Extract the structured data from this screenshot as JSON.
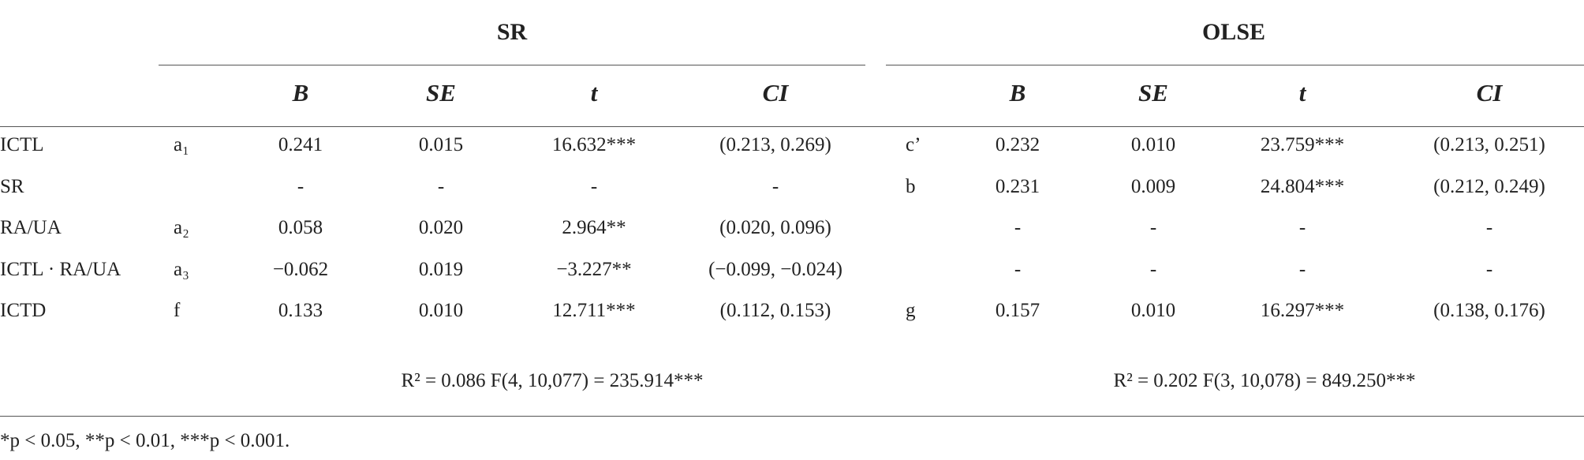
{
  "table": {
    "groups": [
      "SR",
      "OLSE"
    ],
    "columns": [
      "B",
      "SE",
      "t",
      "CI"
    ],
    "rows": [
      [
        "ICTL",
        "a₁",
        "0.241",
        "0.015",
        "16.632***",
        "(0.213, 0.269)",
        "c’",
        "0.232",
        "0.010",
        "23.759***",
        "(0.213, 0.251)"
      ],
      [
        "SR",
        null,
        "-",
        "-",
        "-",
        "-",
        "b",
        "0.231",
        "0.009",
        "24.804***",
        "(0.212, 0.249)"
      ],
      [
        "RA/UA",
        "a₂",
        "0.058",
        "0.020",
        "2.964**",
        "(0.020, 0.096)",
        null,
        "-",
        "-",
        "-",
        "-"
      ],
      [
        "ICTL · RA/UA",
        "a₃",
        "−0.062",
        "0.019",
        "−3.227**",
        "(−0.099, −0.024)",
        null,
        "-",
        "-",
        "-",
        "-"
      ],
      [
        "ICTD",
        "f",
        "0.133",
        "0.010",
        "12.711***",
        "(0.112, 0.153)",
        "g",
        "0.157",
        "0.010",
        "16.297***",
        "(0.138, 0.176)"
      ]
    ],
    "fit": [
      "R² = 0.086 F(4, 10,077) = 235.914***",
      "R² = 0.202 F(3, 10,078) = 849.250***"
    ],
    "note": "*p < 0.05, **p < 0.01, ***p < 0.001."
  }
}
